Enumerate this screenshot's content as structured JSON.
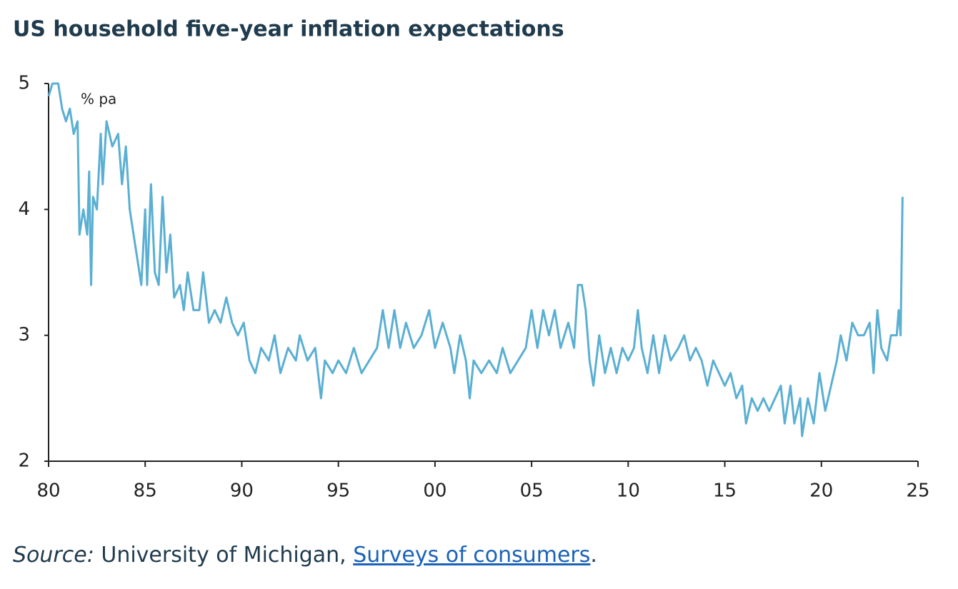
{
  "chart_data": {
    "type": "line",
    "title": "US household five-year inflation expectations",
    "y_unit": "% pa",
    "xlim": [
      1980,
      2025
    ],
    "xticks": [
      {
        "value": 1980,
        "label": "80"
      },
      {
        "value": 1985,
        "label": "85"
      },
      {
        "value": 1990,
        "label": "90"
      },
      {
        "value": 1995,
        "label": "95"
      },
      {
        "value": 2000,
        "label": "00"
      },
      {
        "value": 2005,
        "label": "05"
      },
      {
        "value": 2010,
        "label": "10"
      },
      {
        "value": 2015,
        "label": "15"
      },
      {
        "value": 2020,
        "label": "20"
      },
      {
        "value": 2025,
        "label": "25"
      }
    ],
    "ylim": [
      2,
      5
    ],
    "yticks": [
      2,
      3,
      4,
      5
    ],
    "x": [
      1980.0,
      1980.2,
      1980.5,
      1980.7,
      1980.9,
      1981.1,
      1981.3,
      1981.5,
      1981.6,
      1981.8,
      1982.0,
      1982.1,
      1982.2,
      1982.3,
      1982.5,
      1982.7,
      1982.8,
      1983.0,
      1983.3,
      1983.6,
      1983.8,
      1984.0,
      1984.2,
      1984.5,
      1984.8,
      1985.0,
      1985.1,
      1985.3,
      1985.5,
      1985.7,
      1985.9,
      1986.1,
      1986.3,
      1986.5,
      1986.8,
      1987.0,
      1987.2,
      1987.5,
      1987.8,
      1988.0,
      1988.3,
      1988.6,
      1988.9,
      1989.2,
      1989.5,
      1989.8,
      1990.1,
      1990.4,
      1990.7,
      1991.0,
      1991.4,
      1991.7,
      1992.0,
      1992.4,
      1992.8,
      1993.0,
      1993.4,
      1993.8,
      1994.1,
      1994.3,
      1994.7,
      1995.0,
      1995.4,
      1995.8,
      1996.2,
      1996.6,
      1997.0,
      1997.3,
      1997.6,
      1997.9,
      1998.2,
      1998.5,
      1998.9,
      1999.3,
      1999.7,
      2000.0,
      2000.4,
      2000.8,
      2001.0,
      2001.3,
      2001.6,
      2001.8,
      2002.0,
      2002.4,
      2002.8,
      2003.2,
      2003.5,
      2003.9,
      2004.3,
      2004.7,
      2005.0,
      2005.3,
      2005.6,
      2005.9,
      2006.2,
      2006.5,
      2006.9,
      2007.2,
      2007.4,
      2007.6,
      2007.8,
      2008.0,
      2008.2,
      2008.5,
      2008.8,
      2009.1,
      2009.4,
      2009.7,
      2010.0,
      2010.3,
      2010.5,
      2010.7,
      2011.0,
      2011.3,
      2011.6,
      2011.9,
      2012.2,
      2012.6,
      2012.9,
      2013.2,
      2013.5,
      2013.8,
      2014.1,
      2014.4,
      2014.7,
      2015.0,
      2015.3,
      2015.6,
      2015.9,
      2016.1,
      2016.4,
      2016.7,
      2017.0,
      2017.3,
      2017.6,
      2017.9,
      2018.1,
      2018.4,
      2018.6,
      2018.9,
      2019.0,
      2019.3,
      2019.6,
      2019.9,
      2020.2,
      2020.5,
      2020.8,
      2021.0,
      2021.3,
      2021.6,
      2021.9,
      2022.2,
      2022.5,
      2022.7,
      2022.9,
      2023.1,
      2023.4,
      2023.6,
      2023.9,
      2024.0,
      2024.1,
      2024.2
    ],
    "series": [
      {
        "name": "Five-year inflation expectations",
        "color": "#5aafd2",
        "values": [
          4.9,
          5.0,
          5.0,
          4.8,
          4.7,
          4.8,
          4.6,
          4.7,
          3.8,
          4.0,
          3.8,
          4.3,
          3.4,
          4.1,
          4.0,
          4.6,
          4.2,
          4.7,
          4.5,
          4.6,
          4.2,
          4.5,
          4.0,
          3.7,
          3.4,
          4.0,
          3.4,
          4.2,
          3.5,
          3.4,
          4.1,
          3.5,
          3.8,
          3.3,
          3.4,
          3.2,
          3.5,
          3.2,
          3.2,
          3.5,
          3.1,
          3.2,
          3.1,
          3.3,
          3.1,
          3.0,
          3.1,
          2.8,
          2.7,
          2.9,
          2.8,
          3.0,
          2.7,
          2.9,
          2.8,
          3.0,
          2.8,
          2.9,
          2.5,
          2.8,
          2.7,
          2.8,
          2.7,
          2.9,
          2.7,
          2.8,
          2.9,
          3.2,
          2.9,
          3.2,
          2.9,
          3.1,
          2.9,
          3.0,
          3.2,
          2.9,
          3.1,
          2.9,
          2.7,
          3.0,
          2.8,
          2.5,
          2.8,
          2.7,
          2.8,
          2.7,
          2.9,
          2.7,
          2.8,
          2.9,
          3.2,
          2.9,
          3.2,
          3.0,
          3.2,
          2.9,
          3.1,
          2.9,
          3.4,
          3.4,
          3.2,
          2.8,
          2.6,
          3.0,
          2.7,
          2.9,
          2.7,
          2.9,
          2.8,
          2.9,
          3.2,
          2.9,
          2.7,
          3.0,
          2.7,
          3.0,
          2.8,
          2.9,
          3.0,
          2.8,
          2.9,
          2.8,
          2.6,
          2.8,
          2.7,
          2.6,
          2.7,
          2.5,
          2.6,
          2.3,
          2.5,
          2.4,
          2.5,
          2.4,
          2.5,
          2.6,
          2.3,
          2.6,
          2.3,
          2.5,
          2.2,
          2.5,
          2.3,
          2.7,
          2.4,
          2.6,
          2.8,
          3.0,
          2.8,
          3.1,
          3.0,
          3.0,
          3.1,
          2.7,
          3.2,
          2.9,
          2.8,
          3.0,
          3.0,
          3.2,
          3.0,
          4.1
        ]
      }
    ]
  },
  "source": {
    "label": "Source:",
    "text": "University of Michigan,",
    "link": "Surveys of consumers",
    "end": "."
  }
}
